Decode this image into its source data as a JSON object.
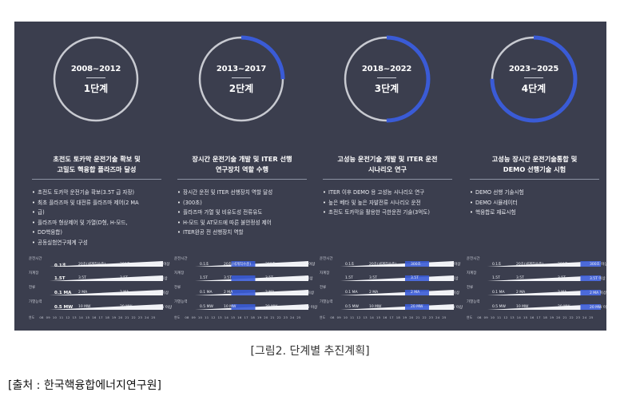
{
  "stages": [
    {
      "years": "2008~2012",
      "stage": "1단계",
      "progress": 0.0,
      "goal": [
        "초전도 토카막 운전기술 확보 및",
        "고밀도 핵융합 플라즈마 달성"
      ],
      "bullets": [
        "초전도 토카막 운전기술 확보(3.5T 급 자장)",
        "최초 플라즈마 및 대전류 플라즈마 제어(2 MA",
        "급)",
        "플라즈마 형상제어 및 가열(D형, H-모드,",
        "DD핵융합)",
        "공동실험연구체계 구성"
      ],
      "row_vals": [
        [
          "0.1초",
          "20초(세계적수준)",
          "300초",
          "300초 이상"
        ],
        [
          "1.5T",
          "3.5T",
          "3.5T",
          "3.5T 이상"
        ],
        [
          "0.1 MA",
          "2 MA",
          "2 MA",
          "2 MA 이상"
        ],
        [
          "0.5 MW",
          "10 MW",
          "20 MW",
          "20 MW 이상"
        ]
      ]
    },
    {
      "years": "2013~2017",
      "stage": "2단계",
      "progress": 0.25,
      "goal": [
        "장시간 운전기술 개발 및 ITER 선행",
        "연구장치 역할 수행"
      ],
      "bullets": [
        "장시간 운전 및 ITER 선행장치 역할 달성",
        "(300초)",
        "플라즈마 가열 및 비유도성 전류유도",
        "H-모드 및 AT모드에 따른 불안정성 제어",
        "ITER완공 전 선행장치 역할"
      ],
      "row_vals": [
        [
          "0.1초",
          "20초(세계적수준)",
          "300초",
          "300초 이상"
        ],
        [
          "1.5T",
          "3.5T",
          "3.5T",
          "3.5T 이상"
        ],
        [
          "0.1 MA",
          "2 MA",
          "2 MA",
          "2 MA 이상"
        ],
        [
          "0.5 MW",
          "10 MW",
          "20 MW",
          "20 MW 이상"
        ]
      ]
    },
    {
      "years": "2018~2022",
      "stage": "3단계",
      "progress": 0.5,
      "goal": [
        "고성능 운전기술 개발 및 ITER 운전",
        "시나리오 연구"
      ],
      "bullets": [
        "ITER 이후 DEMO 용 고성능 시나리오 연구",
        "높은 베타 및 높은 자발전류 시나리오 운전",
        "초전도 토카막을 활용한 극한운전 기술(3억도)"
      ],
      "row_vals": [
        [
          "0.1초",
          "20초(세계적수준)",
          "300초",
          "300초 이상"
        ],
        [
          "1.5T",
          "3.5T",
          "3.5T",
          "3.5T 이상"
        ],
        [
          "0.1 MA",
          "2 MA",
          "2 MA",
          "2 MA 이상"
        ],
        [
          "0.5 MW",
          "10 MW",
          "20 MW",
          "20 MW 이상"
        ]
      ]
    },
    {
      "years": "2023~2025",
      "stage": "4단계",
      "progress": 0.75,
      "goal": [
        "고성능 장시간 운전기술통합 및",
        "DEMO 선행기술 시험"
      ],
      "bullets": [
        "DEMO 선행 기술시험",
        "DEMO 시뮬레이터",
        "핵융합로 재료시험"
      ],
      "row_vals": [
        [
          "0.1초",
          "20초(세계적수준)",
          "300초",
          "300초 이상"
        ],
        [
          "1.5T",
          "3.5T",
          "3.5T",
          "3.5T 이상"
        ],
        [
          "0.1 MA",
          "2 MA",
          "2 MA",
          "2 MA 이상"
        ],
        [
          "0.5 MW",
          "10 MW",
          "20 MW",
          "20 MW 이상"
        ]
      ]
    }
  ],
  "mini_chart": {
    "row_labels": [
      "운전시간",
      "자계장",
      "전류",
      "가열능력"
    ],
    "axis_label": "연도",
    "axis_ticks": [
      "08",
      "09",
      "10",
      "11",
      "12",
      "13",
      "14",
      "15",
      "16",
      "17",
      "18",
      "19",
      "20",
      "21",
      "22",
      "23",
      "24",
      "25"
    ]
  },
  "caption": "[그림2. 단계별 추진계획]",
  "source": "[출처 : 한국핵융합에너지연구원]",
  "colors": {
    "background": "#3b3e4e",
    "accent": "#3a5bd6",
    "ring": "#c8cad1"
  }
}
